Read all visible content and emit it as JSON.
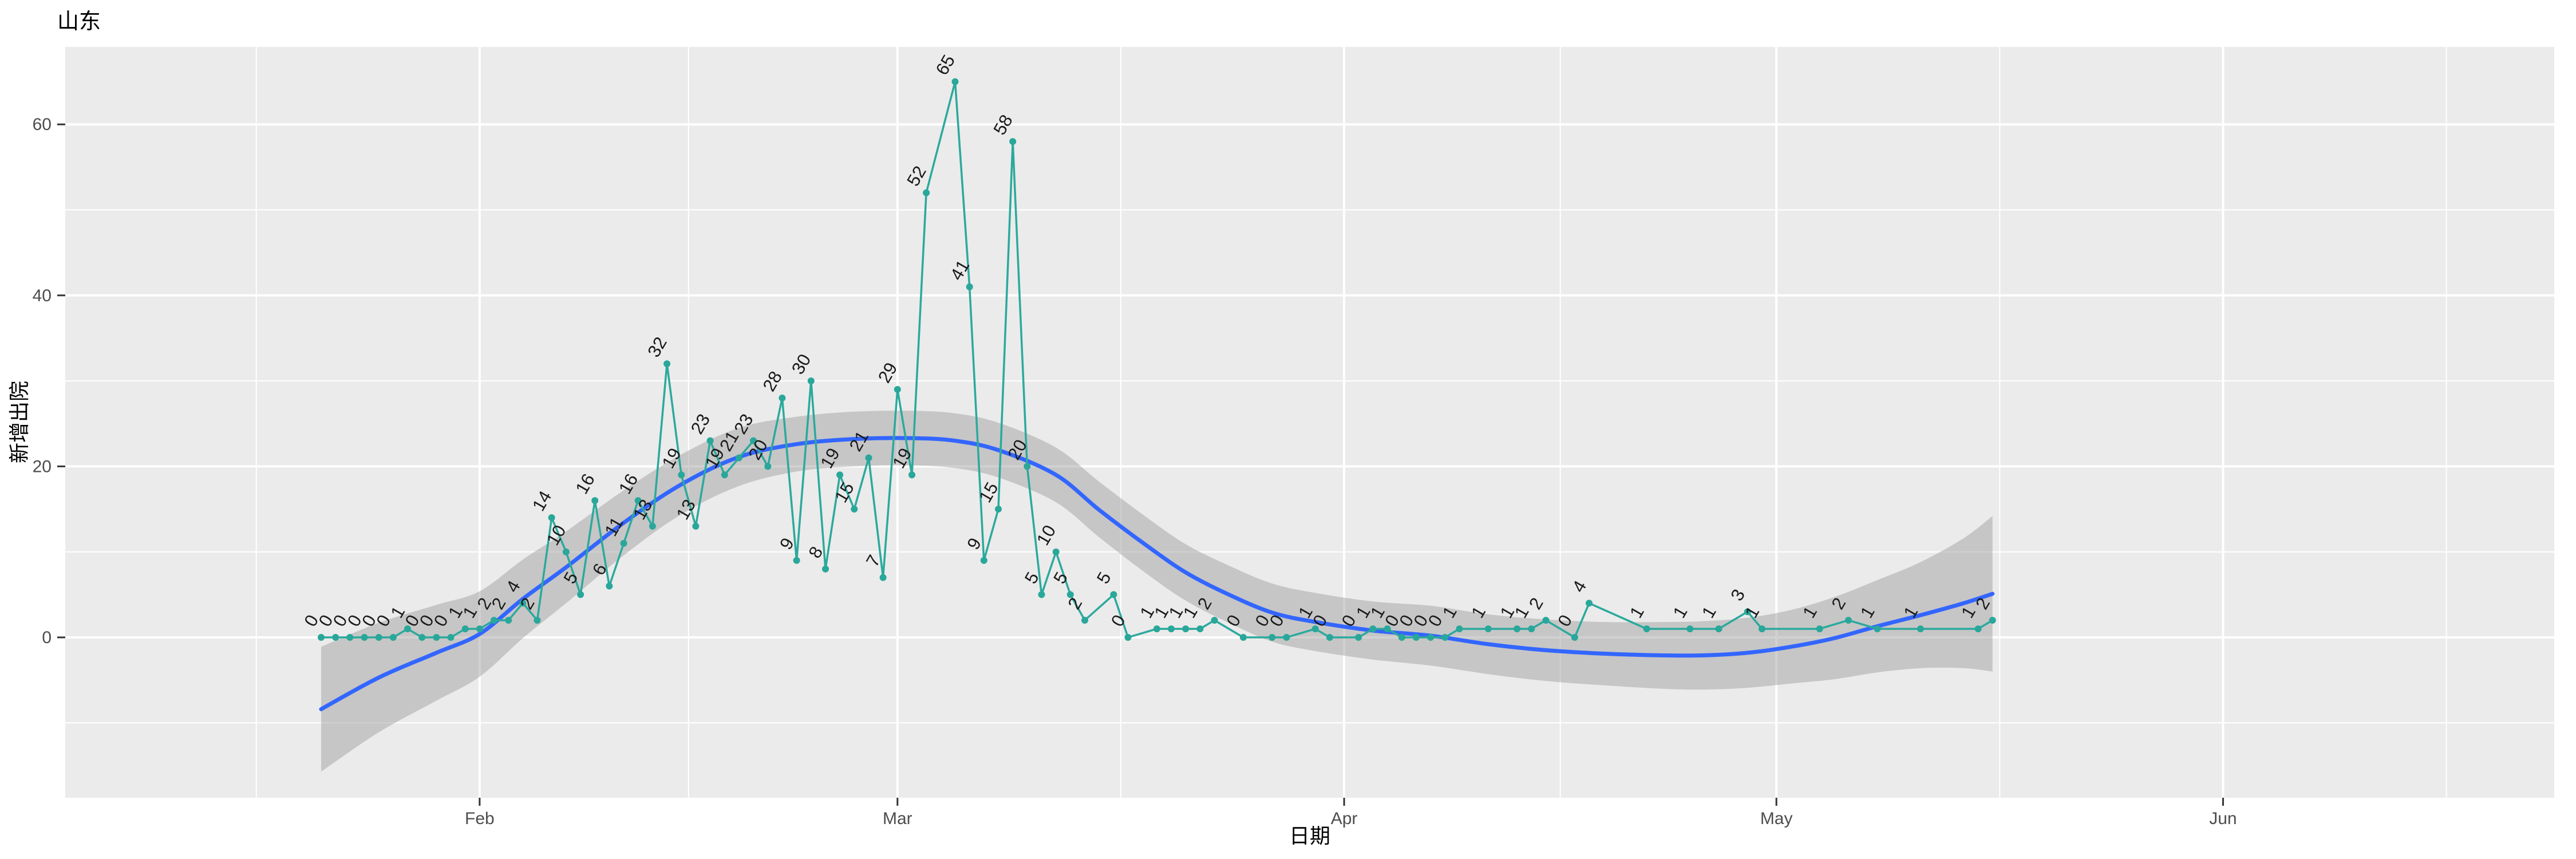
{
  "title": "山东",
  "x_axis": {
    "title": "日期",
    "tick_labels": [
      "Feb",
      "Mar",
      "Apr",
      "May",
      "Jun"
    ]
  },
  "y_axis": {
    "title": "新增出院",
    "tick_labels": [
      "0",
      "20",
      "40",
      "60"
    ]
  },
  "colors": {
    "panel_bg": "#EBEBEB",
    "grid": "#FFFFFF",
    "series": "#2BA99D",
    "point": "#29A79A",
    "data_label": "#1A1A1A",
    "smooth_line": "#3366FF",
    "ribbon": "#999999",
    "ribbon_opacity": 0.45,
    "tick_mark": "#333333",
    "tick_text": "#4D4D4D",
    "title_text": "#000000"
  },
  "chart_data": {
    "type": "line",
    "title": "山东",
    "xlabel": "日期",
    "ylabel": "新增出院",
    "x_tick_labels": [
      "Feb",
      "Mar",
      "Apr",
      "May",
      "Jun"
    ],
    "x_tick_day_offsets": [
      11,
      40,
      71,
      101,
      132
    ],
    "x_minor_day_offsets": [
      -4.5,
      25.5,
      55.5,
      86,
      116.5,
      147.5
    ],
    "y_ticks": [
      0,
      20,
      40,
      60
    ],
    "y_minor_ticks": [
      -10,
      10,
      30,
      50
    ],
    "ylim_panel": [
      -18.7,
      69.0
    ],
    "grid": "on",
    "legend": "none",
    "series_note": "day = offset from first observation (11 days before the Feb tick); gaps in day values are dates missing from the data",
    "points_day_value": [
      [
        0,
        0
      ],
      [
        1,
        0
      ],
      [
        2,
        0
      ],
      [
        3,
        0
      ],
      [
        4,
        0
      ],
      [
        5,
        0
      ],
      [
        6,
        1
      ],
      [
        7,
        0
      ],
      [
        8,
        0
      ],
      [
        9,
        0
      ],
      [
        10,
        1
      ],
      [
        11,
        1
      ],
      [
        12,
        2
      ],
      [
        13,
        2
      ],
      [
        14,
        4
      ],
      [
        15,
        2
      ],
      [
        16,
        14
      ],
      [
        17,
        10
      ],
      [
        18,
        5
      ],
      [
        19,
        16
      ],
      [
        20,
        6
      ],
      [
        21,
        11
      ],
      [
        22,
        16
      ],
      [
        23,
        13
      ],
      [
        24,
        32
      ],
      [
        25,
        19
      ],
      [
        26,
        13
      ],
      [
        27,
        23
      ],
      [
        28,
        19
      ],
      [
        29,
        21
      ],
      [
        30,
        23
      ],
      [
        31,
        20
      ],
      [
        32,
        28
      ],
      [
        33,
        9
      ],
      [
        34,
        30
      ],
      [
        35,
        8
      ],
      [
        36,
        19
      ],
      [
        37,
        15
      ],
      [
        38,
        21
      ],
      [
        39,
        7
      ],
      [
        40,
        29
      ],
      [
        41,
        19
      ],
      [
        42,
        52
      ],
      [
        44,
        65
      ],
      [
        45,
        41
      ],
      [
        46,
        9
      ],
      [
        47,
        15
      ],
      [
        48,
        58
      ],
      [
        49,
        20
      ],
      [
        50,
        5
      ],
      [
        51,
        10
      ],
      [
        52,
        5
      ],
      [
        53,
        2
      ],
      [
        55,
        5
      ],
      [
        56,
        0
      ],
      [
        58,
        1
      ],
      [
        59,
        1
      ],
      [
        60,
        1
      ],
      [
        61,
        1
      ],
      [
        62,
        2
      ],
      [
        64,
        0
      ],
      [
        66,
        0
      ],
      [
        67,
        0
      ],
      [
        69,
        1
      ],
      [
        70,
        0
      ],
      [
        72,
        0
      ],
      [
        73,
        1
      ],
      [
        74,
        1
      ],
      [
        75,
        0
      ],
      [
        76,
        0
      ],
      [
        77,
        0
      ],
      [
        78,
        0
      ],
      [
        79,
        1
      ],
      [
        81,
        1
      ],
      [
        83,
        1
      ],
      [
        84,
        1
      ],
      [
        85,
        2
      ],
      [
        87,
        0
      ],
      [
        88,
        4
      ],
      [
        92,
        1
      ],
      [
        95,
        1
      ],
      [
        97,
        1
      ],
      [
        99,
        3
      ],
      [
        100,
        1
      ],
      [
        104,
        1
      ],
      [
        106,
        2
      ],
      [
        108,
        1
      ],
      [
        111,
        1
      ],
      [
        115,
        1
      ],
      [
        116,
        2
      ]
    ],
    "smooth_day_value": [
      [
        0,
        -8.4
      ],
      [
        4,
        -4.7
      ],
      [
        8,
        -1.8
      ],
      [
        11,
        0.4
      ],
      [
        14,
        4.5
      ],
      [
        17,
        8.2
      ],
      [
        21,
        13.4
      ],
      [
        25,
        17.9
      ],
      [
        29,
        21.1
      ],
      [
        33,
        22.6
      ],
      [
        37,
        23.2
      ],
      [
        41,
        23.3
      ],
      [
        44,
        23.0
      ],
      [
        47,
        21.9
      ],
      [
        51,
        19.0
      ],
      [
        54,
        14.9
      ],
      [
        57,
        11.1
      ],
      [
        60,
        7.6
      ],
      [
        63,
        5.0
      ],
      [
        66,
        2.9
      ],
      [
        69,
        1.8
      ],
      [
        73,
        0.8
      ],
      [
        77,
        0.2
      ],
      [
        81,
        -0.8
      ],
      [
        85,
        -1.5
      ],
      [
        89,
        -1.9
      ],
      [
        93,
        -2.1
      ],
      [
        96,
        -2.1
      ],
      [
        99,
        -1.8
      ],
      [
        102,
        -1.1
      ],
      [
        105,
        -0.1
      ],
      [
        108,
        1.3
      ],
      [
        111,
        2.6
      ],
      [
        114,
        4.0
      ],
      [
        116,
        5.1
      ]
    ],
    "ribbon_day_upper_lower": [
      [
        0,
        -1.1,
        -15.7
      ],
      [
        4,
        1.7,
        -11.1
      ],
      [
        8,
        3.8,
        -7.4
      ],
      [
        11,
        5.4,
        -4.6
      ],
      [
        14,
        9.1,
        -0.1
      ],
      [
        17,
        12.4,
        4.0
      ],
      [
        21,
        17.2,
        9.6
      ],
      [
        25,
        21.4,
        14.4
      ],
      [
        29,
        24.5,
        17.7
      ],
      [
        33,
        25.8,
        19.4
      ],
      [
        37,
        26.4,
        20.0
      ],
      [
        41,
        26.5,
        20.1
      ],
      [
        44,
        26.2,
        19.8
      ],
      [
        47,
        25.1,
        18.7
      ],
      [
        51,
        22.2,
        15.8
      ],
      [
        54,
        18.2,
        11.7
      ],
      [
        57,
        14.4,
        7.8
      ],
      [
        60,
        10.9,
        4.3
      ],
      [
        63,
        8.4,
        1.7
      ],
      [
        66,
        6.3,
        -0.5
      ],
      [
        69,
        5.2,
        -1.6
      ],
      [
        73,
        4.2,
        -2.6
      ],
      [
        77,
        3.7,
        -3.3
      ],
      [
        81,
        2.7,
        -4.3
      ],
      [
        85,
        2.1,
        -5.1
      ],
      [
        89,
        1.8,
        -5.6
      ],
      [
        93,
        1.8,
        -6.0
      ],
      [
        96,
        1.9,
        -6.1
      ],
      [
        99,
        2.3,
        -5.9
      ],
      [
        102,
        3.2,
        -5.4
      ],
      [
        105,
        4.7,
        -4.9
      ],
      [
        108,
        6.7,
        -4.1
      ],
      [
        111,
        8.8,
        -3.6
      ],
      [
        114,
        11.6,
        -3.6
      ],
      [
        116,
        14.2,
        -4.0
      ]
    ]
  }
}
